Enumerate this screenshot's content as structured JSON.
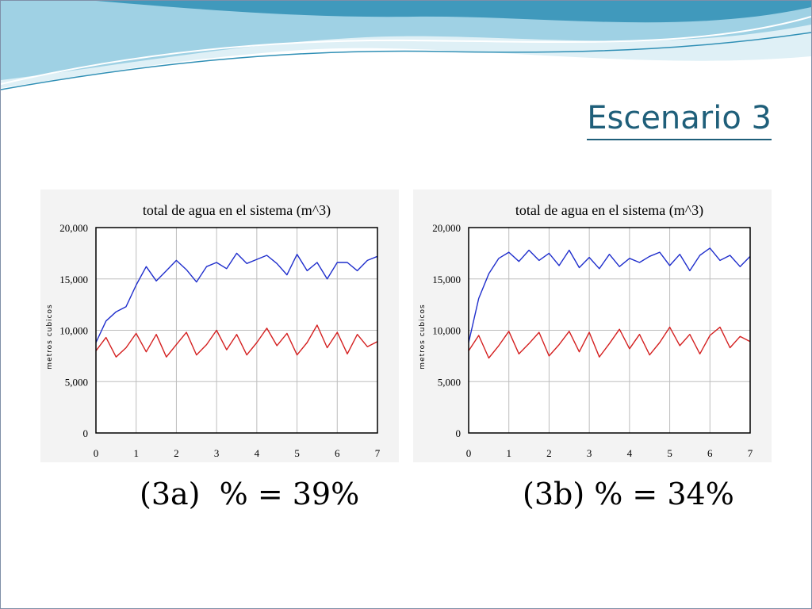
{
  "slide": {
    "title": "Escenario 3",
    "colors": {
      "header_light": "#dff0f6",
      "header_mid": "#9fd1e4",
      "header_dark": "#2f8fb5",
      "title": "#1f5f7a",
      "series_blue": "#1f2ecc",
      "series_red": "#d42020"
    }
  },
  "captions": [
    {
      "label": "(3a)  % = 39%"
    },
    {
      "label": "(3b) % = 34%"
    }
  ],
  "chart_data": [
    {
      "type": "line",
      "title": "total de agua en el sistema (m^3)",
      "xlabel": "",
      "ylabel": "metros cubicos",
      "xlim": [
        0,
        7
      ],
      "ylim": [
        0,
        20000
      ],
      "x_ticks": [
        "0",
        "1",
        "2",
        "3",
        "4",
        "5",
        "6",
        "7"
      ],
      "y_ticks": [
        "0",
        "5,000",
        "10,000",
        "15,000",
        "20,000"
      ],
      "grid": true,
      "series": [
        {
          "color": "#1f2ecc",
          "x": [
            0,
            0.25,
            0.5,
            0.75,
            1.0,
            1.25,
            1.5,
            1.75,
            2.0,
            2.25,
            2.5,
            2.75,
            3.0,
            3.25,
            3.5,
            3.75,
            4.0,
            4.25,
            4.5,
            4.75,
            5.0,
            5.25,
            5.5,
            5.75,
            6.0,
            6.25,
            6.5,
            6.75,
            7.0
          ],
          "y": [
            8800,
            10900,
            11800,
            12300,
            14400,
            16200,
            14800,
            15800,
            16800,
            15900,
            14700,
            16200,
            16600,
            16000,
            17500,
            16500,
            16900,
            17300,
            16500,
            15400,
            17400,
            15800,
            16600,
            15000,
            16600,
            16600,
            15800,
            16800,
            17200
          ]
        },
        {
          "color": "#d42020",
          "x": [
            0,
            0.25,
            0.5,
            0.75,
            1.0,
            1.25,
            1.5,
            1.75,
            2.0,
            2.25,
            2.5,
            2.75,
            3.0,
            3.25,
            3.5,
            3.75,
            4.0,
            4.25,
            4.5,
            4.75,
            5.0,
            5.25,
            5.5,
            5.75,
            6.0,
            6.25,
            6.5,
            6.75,
            7.0
          ],
          "y": [
            8000,
            9300,
            7400,
            8300,
            9700,
            7900,
            9600,
            7400,
            8600,
            9800,
            7600,
            8600,
            10000,
            8100,
            9600,
            7600,
            8800,
            10200,
            8500,
            9700,
            7600,
            8800,
            10500,
            8300,
            9800,
            7700,
            9600,
            8400,
            8900
          ]
        }
      ]
    },
    {
      "type": "line",
      "title": "total de agua en el sistema (m^3)",
      "xlabel": "",
      "ylabel": "metros cubicos",
      "xlim": [
        0,
        7
      ],
      "ylim": [
        0,
        20000
      ],
      "x_ticks": [
        "0",
        "1",
        "2",
        "3",
        "4",
        "5",
        "6",
        "7"
      ],
      "y_ticks": [
        "0",
        "5,000",
        "10,000",
        "15,000",
        "20,000"
      ],
      "grid": true,
      "series": [
        {
          "color": "#1f2ecc",
          "x": [
            0,
            0.25,
            0.5,
            0.75,
            1.0,
            1.25,
            1.5,
            1.75,
            2.0,
            2.25,
            2.5,
            2.75,
            3.0,
            3.25,
            3.5,
            3.75,
            4.0,
            4.25,
            4.5,
            4.75,
            5.0,
            5.25,
            5.5,
            5.75,
            6.0,
            6.25,
            6.5,
            6.75,
            7.0
          ],
          "y": [
            8800,
            13100,
            15500,
            17000,
            17600,
            16700,
            17800,
            16800,
            17500,
            16300,
            17800,
            16100,
            17100,
            16000,
            17400,
            16200,
            17000,
            16600,
            17200,
            17600,
            16300,
            17400,
            15800,
            17300,
            18000,
            16800,
            17300,
            16200,
            17200
          ]
        },
        {
          "color": "#d42020",
          "x": [
            0,
            0.25,
            0.5,
            0.75,
            1.0,
            1.25,
            1.5,
            1.75,
            2.0,
            2.25,
            2.5,
            2.75,
            3.0,
            3.25,
            3.5,
            3.75,
            4.0,
            4.25,
            4.5,
            4.75,
            5.0,
            5.25,
            5.5,
            5.75,
            6.0,
            6.25,
            6.5,
            6.75,
            7.0
          ],
          "y": [
            8000,
            9500,
            7300,
            8500,
            9900,
            7700,
            8700,
            9800,
            7500,
            8600,
            9900,
            7900,
            9800,
            7400,
            8700,
            10100,
            8200,
            9600,
            7600,
            8800,
            10300,
            8500,
            9600,
            7700,
            9500,
            10300,
            8300,
            9400,
            8900
          ]
        }
      ]
    }
  ]
}
